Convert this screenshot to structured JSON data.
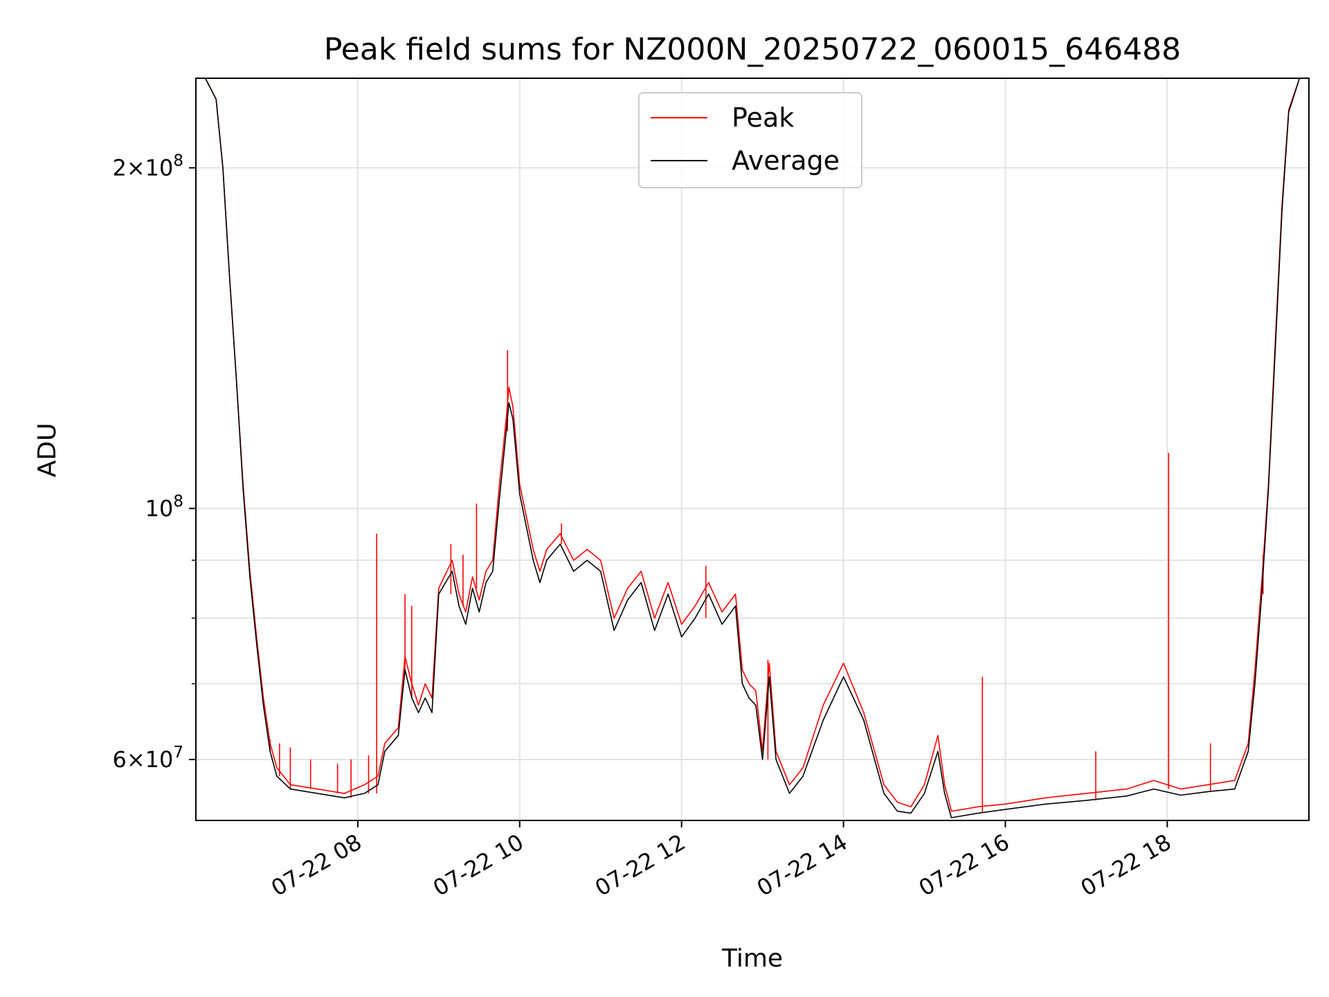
{
  "chart_data": {
    "type": "line",
    "title": "Peak field sums for NZ000N_20250722_060015_646488",
    "xlabel": "Time",
    "ylabel": "ADU",
    "x_scale": "time",
    "y_scale": "log",
    "xlim": [
      "2025-07-22 06:00",
      "2025-07-22 19:45"
    ],
    "ylim": [
      53000000,
      240000000
    ],
    "grid": true,
    "legend_position": "upper center",
    "x_ticks": [
      {
        "time": "2025-07-22 08:00",
        "label": "07-22 08"
      },
      {
        "time": "2025-07-22 10:00",
        "label": "07-22 10"
      },
      {
        "time": "2025-07-22 12:00",
        "label": "07-22 12"
      },
      {
        "time": "2025-07-22 14:00",
        "label": "07-22 14"
      },
      {
        "time": "2025-07-22 16:00",
        "label": "07-22 16"
      },
      {
        "time": "2025-07-22 18:00",
        "label": "07-22 18"
      }
    ],
    "y_major_ticks": [
      {
        "value": 60000000,
        "mantissa": "6",
        "exponent": "7"
      },
      {
        "value": 100000000,
        "mantissa": "",
        "exponent": "8"
      },
      {
        "value": 200000000,
        "mantissa": "2",
        "exponent": "8"
      }
    ],
    "y_minor_ticks": [
      70000000,
      80000000,
      90000000
    ],
    "series": [
      {
        "name": "Peak",
        "color": "#ff0000",
        "points": [
          [
            "2025-07-22 06:07",
            240000000
          ],
          [
            "2025-07-22 06:15",
            230000000
          ],
          [
            "2025-07-22 06:20",
            200000000
          ],
          [
            "2025-07-22 06:25",
            160000000
          ],
          [
            "2025-07-22 06:30",
            130000000
          ],
          [
            "2025-07-22 06:35",
            105000000
          ],
          [
            "2025-07-22 06:40",
            88000000
          ],
          [
            "2025-07-22 06:45",
            77000000
          ],
          [
            "2025-07-22 06:50",
            68000000
          ],
          [
            "2025-07-22 06:55",
            62000000
          ],
          [
            "2025-07-22 07:00",
            59000000
          ],
          [
            "2025-07-22 07:10",
            57000000
          ],
          [
            "2025-07-22 07:30",
            56500000
          ],
          [
            "2025-07-22 07:50",
            56000000
          ],
          [
            "2025-07-22 08:05",
            57000000
          ],
          [
            "2025-07-22 08:15",
            58000000
          ],
          [
            "2025-07-22 08:20",
            62000000
          ],
          [
            "2025-07-22 08:30",
            64000000
          ],
          [
            "2025-07-22 08:35",
            74000000
          ],
          [
            "2025-07-22 08:40",
            70000000
          ],
          [
            "2025-07-22 08:45",
            67000000
          ],
          [
            "2025-07-22 08:50",
            70000000
          ],
          [
            "2025-07-22 08:55",
            68000000
          ],
          [
            "2025-07-22 09:00",
            85000000
          ],
          [
            "2025-07-22 09:10",
            90000000
          ],
          [
            "2025-07-22 09:15",
            84000000
          ],
          [
            "2025-07-22 09:20",
            81000000
          ],
          [
            "2025-07-22 09:25",
            87000000
          ],
          [
            "2025-07-22 09:30",
            83000000
          ],
          [
            "2025-07-22 09:35",
            88000000
          ],
          [
            "2025-07-22 09:40",
            90000000
          ],
          [
            "2025-07-22 09:45",
            105000000
          ],
          [
            "2025-07-22 09:50",
            120000000
          ],
          [
            "2025-07-22 09:52",
            128000000
          ],
          [
            "2025-07-22 09:55",
            123000000
          ],
          [
            "2025-07-22 10:00",
            105000000
          ],
          [
            "2025-07-22 10:10",
            92000000
          ],
          [
            "2025-07-22 10:15",
            88000000
          ],
          [
            "2025-07-22 10:20",
            92000000
          ],
          [
            "2025-07-22 10:30",
            95000000
          ],
          [
            "2025-07-22 10:40",
            90000000
          ],
          [
            "2025-07-22 10:50",
            92000000
          ],
          [
            "2025-07-22 11:00",
            90000000
          ],
          [
            "2025-07-22 11:10",
            80000000
          ],
          [
            "2025-07-22 11:20",
            85000000
          ],
          [
            "2025-07-22 11:30",
            88000000
          ],
          [
            "2025-07-22 11:40",
            80000000
          ],
          [
            "2025-07-22 11:50",
            86000000
          ],
          [
            "2025-07-22 12:00",
            79000000
          ],
          [
            "2025-07-22 12:10",
            82000000
          ],
          [
            "2025-07-22 12:20",
            86000000
          ],
          [
            "2025-07-22 12:30",
            81000000
          ],
          [
            "2025-07-22 12:40",
            84000000
          ],
          [
            "2025-07-22 12:45",
            72000000
          ],
          [
            "2025-07-22 12:50",
            70000000
          ],
          [
            "2025-07-22 12:55",
            69000000
          ],
          [
            "2025-07-22 13:00",
            61000000
          ],
          [
            "2025-07-22 13:05",
            73000000
          ],
          [
            "2025-07-22 13:10",
            61000000
          ],
          [
            "2025-07-22 13:20",
            57000000
          ],
          [
            "2025-07-22 13:30",
            59000000
          ],
          [
            "2025-07-22 13:45",
            67000000
          ],
          [
            "2025-07-22 14:00",
            73000000
          ],
          [
            "2025-07-22 14:15",
            66000000
          ],
          [
            "2025-07-22 14:30",
            57000000
          ],
          [
            "2025-07-22 14:40",
            55000000
          ],
          [
            "2025-07-22 14:50",
            54500000
          ],
          [
            "2025-07-22 15:00",
            57000000
          ],
          [
            "2025-07-22 15:10",
            63000000
          ],
          [
            "2025-07-22 15:15",
            57000000
          ],
          [
            "2025-07-22 15:20",
            54000000
          ],
          [
            "2025-07-22 15:40",
            54500000
          ],
          [
            "2025-07-22 16:00",
            54800000
          ],
          [
            "2025-07-22 16:30",
            55500000
          ],
          [
            "2025-07-22 17:00",
            56000000
          ],
          [
            "2025-07-22 17:30",
            56500000
          ],
          [
            "2025-07-22 17:50",
            57500000
          ],
          [
            "2025-07-22 18:10",
            56500000
          ],
          [
            "2025-07-22 18:30",
            57000000
          ],
          [
            "2025-07-22 18:50",
            57500000
          ],
          [
            "2025-07-22 19:00",
            62000000
          ],
          [
            "2025-07-22 19:05",
            72000000
          ],
          [
            "2025-07-22 19:10",
            86000000
          ],
          [
            "2025-07-22 19:15",
            105000000
          ],
          [
            "2025-07-22 19:20",
            140000000
          ],
          [
            "2025-07-22 19:25",
            185000000
          ],
          [
            "2025-07-22 19:30",
            225000000
          ],
          [
            "2025-07-22 19:38",
            240000000
          ]
        ],
        "spikes": [
          [
            "2025-07-22 06:55",
            62500000
          ],
          [
            "2025-07-22 07:02",
            62000000
          ],
          [
            "2025-07-22 07:10",
            61500000
          ],
          [
            "2025-07-22 07:25",
            60000000
          ],
          [
            "2025-07-22 07:45",
            59500000
          ],
          [
            "2025-07-22 07:55",
            60000000
          ],
          [
            "2025-07-22 08:08",
            60500000
          ],
          [
            "2025-07-22 08:14",
            95000000
          ],
          [
            "2025-07-22 08:35",
            84000000
          ],
          [
            "2025-07-22 08:40",
            82000000
          ],
          [
            "2025-07-22 09:09",
            93000000
          ],
          [
            "2025-07-22 09:18",
            91000000
          ],
          [
            "2025-07-22 09:28",
            101000000
          ],
          [
            "2025-07-22 09:51",
            138000000
          ],
          [
            "2025-07-22 10:31",
            97000000
          ],
          [
            "2025-07-22 12:18",
            89000000
          ],
          [
            "2025-07-22 13:04",
            73500000
          ],
          [
            "2025-07-22 15:43",
            71000000
          ],
          [
            "2025-07-22 17:07",
            61000000
          ],
          [
            "2025-07-22 18:01",
            112000000
          ],
          [
            "2025-07-22 18:32",
            62000000
          ],
          [
            "2025-07-22 19:11",
            91000000
          ]
        ]
      },
      {
        "name": "Average",
        "color": "#000000",
        "points": [
          [
            "2025-07-22 06:07",
            240000000
          ],
          [
            "2025-07-22 06:15",
            230000000
          ],
          [
            "2025-07-22 06:20",
            200000000
          ],
          [
            "2025-07-22 06:25",
            160000000
          ],
          [
            "2025-07-22 06:30",
            130000000
          ],
          [
            "2025-07-22 06:35",
            104000000
          ],
          [
            "2025-07-22 06:40",
            87000000
          ],
          [
            "2025-07-22 06:45",
            76000000
          ],
          [
            "2025-07-22 06:50",
            67000000
          ],
          [
            "2025-07-22 06:55",
            61000000
          ],
          [
            "2025-07-22 07:00",
            58000000
          ],
          [
            "2025-07-22 07:10",
            56500000
          ],
          [
            "2025-07-22 07:30",
            56000000
          ],
          [
            "2025-07-22 07:50",
            55500000
          ],
          [
            "2025-07-22 08:05",
            56000000
          ],
          [
            "2025-07-22 08:15",
            57000000
          ],
          [
            "2025-07-22 08:20",
            61000000
          ],
          [
            "2025-07-22 08:30",
            63000000
          ],
          [
            "2025-07-22 08:35",
            72000000
          ],
          [
            "2025-07-22 08:40",
            68000000
          ],
          [
            "2025-07-22 08:45",
            66000000
          ],
          [
            "2025-07-22 08:50",
            68000000
          ],
          [
            "2025-07-22 08:55",
            66000000
          ],
          [
            "2025-07-22 09:00",
            84000000
          ],
          [
            "2025-07-22 09:10",
            88000000
          ],
          [
            "2025-07-22 09:15",
            82000000
          ],
          [
            "2025-07-22 09:20",
            79000000
          ],
          [
            "2025-07-22 09:25",
            85000000
          ],
          [
            "2025-07-22 09:30",
            81000000
          ],
          [
            "2025-07-22 09:35",
            86000000
          ],
          [
            "2025-07-22 09:40",
            88000000
          ],
          [
            "2025-07-22 09:45",
            102000000
          ],
          [
            "2025-07-22 09:50",
            117000000
          ],
          [
            "2025-07-22 09:52",
            124000000
          ],
          [
            "2025-07-22 09:55",
            120000000
          ],
          [
            "2025-07-22 10:00",
            103000000
          ],
          [
            "2025-07-22 10:10",
            90000000
          ],
          [
            "2025-07-22 10:15",
            86000000
          ],
          [
            "2025-07-22 10:20",
            90000000
          ],
          [
            "2025-07-22 10:30",
            93000000
          ],
          [
            "2025-07-22 10:40",
            88000000
          ],
          [
            "2025-07-22 10:50",
            90000000
          ],
          [
            "2025-07-22 11:00",
            88000000
          ],
          [
            "2025-07-22 11:10",
            78000000
          ],
          [
            "2025-07-22 11:20",
            83000000
          ],
          [
            "2025-07-22 11:30",
            86000000
          ],
          [
            "2025-07-22 11:40",
            78000000
          ],
          [
            "2025-07-22 11:50",
            84000000
          ],
          [
            "2025-07-22 12:00",
            77000000
          ],
          [
            "2025-07-22 12:10",
            80000000
          ],
          [
            "2025-07-22 12:20",
            84000000
          ],
          [
            "2025-07-22 12:30",
            79000000
          ],
          [
            "2025-07-22 12:40",
            82000000
          ],
          [
            "2025-07-22 12:45",
            70000000
          ],
          [
            "2025-07-22 12:50",
            68000000
          ],
          [
            "2025-07-22 12:55",
            67000000
          ],
          [
            "2025-07-22 13:00",
            60000000
          ],
          [
            "2025-07-22 13:05",
            71000000
          ],
          [
            "2025-07-22 13:10",
            60000000
          ],
          [
            "2025-07-22 13:20",
            56000000
          ],
          [
            "2025-07-22 13:30",
            58000000
          ],
          [
            "2025-07-22 13:45",
            65000000
          ],
          [
            "2025-07-22 14:00",
            71000000
          ],
          [
            "2025-07-22 14:15",
            65000000
          ],
          [
            "2025-07-22 14:30",
            56000000
          ],
          [
            "2025-07-22 14:40",
            54000000
          ],
          [
            "2025-07-22 14:50",
            53800000
          ],
          [
            "2025-07-22 15:00",
            56000000
          ],
          [
            "2025-07-22 15:10",
            61000000
          ],
          [
            "2025-07-22 15:15",
            56000000
          ],
          [
            "2025-07-22 15:20",
            53300000
          ],
          [
            "2025-07-22 15:40",
            53800000
          ],
          [
            "2025-07-22 16:00",
            54200000
          ],
          [
            "2025-07-22 16:30",
            54800000
          ],
          [
            "2025-07-22 17:00",
            55200000
          ],
          [
            "2025-07-22 17:30",
            55700000
          ],
          [
            "2025-07-22 17:50",
            56500000
          ],
          [
            "2025-07-22 18:10",
            55800000
          ],
          [
            "2025-07-22 18:30",
            56200000
          ],
          [
            "2025-07-22 18:50",
            56500000
          ],
          [
            "2025-07-22 19:00",
            61000000
          ],
          [
            "2025-07-22 19:05",
            70000000
          ],
          [
            "2025-07-22 19:10",
            84000000
          ],
          [
            "2025-07-22 19:15",
            104000000
          ],
          [
            "2025-07-22 19:20",
            138000000
          ],
          [
            "2025-07-22 19:25",
            183000000
          ],
          [
            "2025-07-22 19:30",
            224000000
          ],
          [
            "2025-07-22 19:38",
            240000000
          ]
        ]
      }
    ]
  }
}
